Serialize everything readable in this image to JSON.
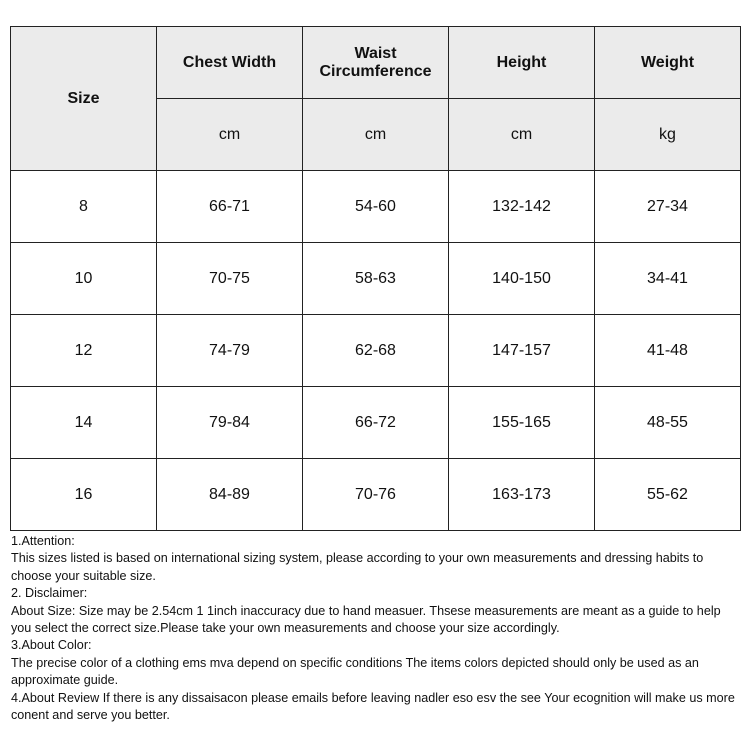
{
  "table": {
    "header": {
      "size": "Size",
      "columns": [
        {
          "name": "Chest Width",
          "unit": "cm"
        },
        {
          "name": "Waist Circumference",
          "unit": "cm"
        },
        {
          "name": "Height",
          "unit": "cm"
        },
        {
          "name": "Weight",
          "unit": "kg"
        }
      ]
    },
    "rows": [
      [
        "8",
        "66-71",
        "54-60",
        "132-142",
        "27-34"
      ],
      [
        "10",
        "70-75",
        "58-63",
        "140-150",
        "34-41"
      ],
      [
        "12",
        "74-79",
        "62-68",
        "147-157",
        "41-48"
      ],
      [
        "14",
        "79-84",
        "66-72",
        "155-165",
        "48-55"
      ],
      [
        "16",
        "84-89",
        "70-76",
        "163-173",
        "55-62"
      ]
    ]
  },
  "notes": [
    "1.Attention:",
    "This sizes listed is based on international sizing system, please according to your own measurements and dressing habits to choose your suitable size.",
    "2. Disclaimer:",
    "About Size: Size may be 2.54cm 1 1inch inaccuracy due to hand measuer. Thsese measurements are meant as a guide to help you select the correct size.Please take your own measurements and choose your size accordingly.",
    "3.About Color:",
    "The precise color of a clothing ems mva depend on specific conditions The items colors depicted should only be used as an approximate guide.",
    "4.About Review If there is  any dissaisacon please emails before leaving nadler eso esv the see Your ecognition will make us more conent and serve you better."
  ]
}
